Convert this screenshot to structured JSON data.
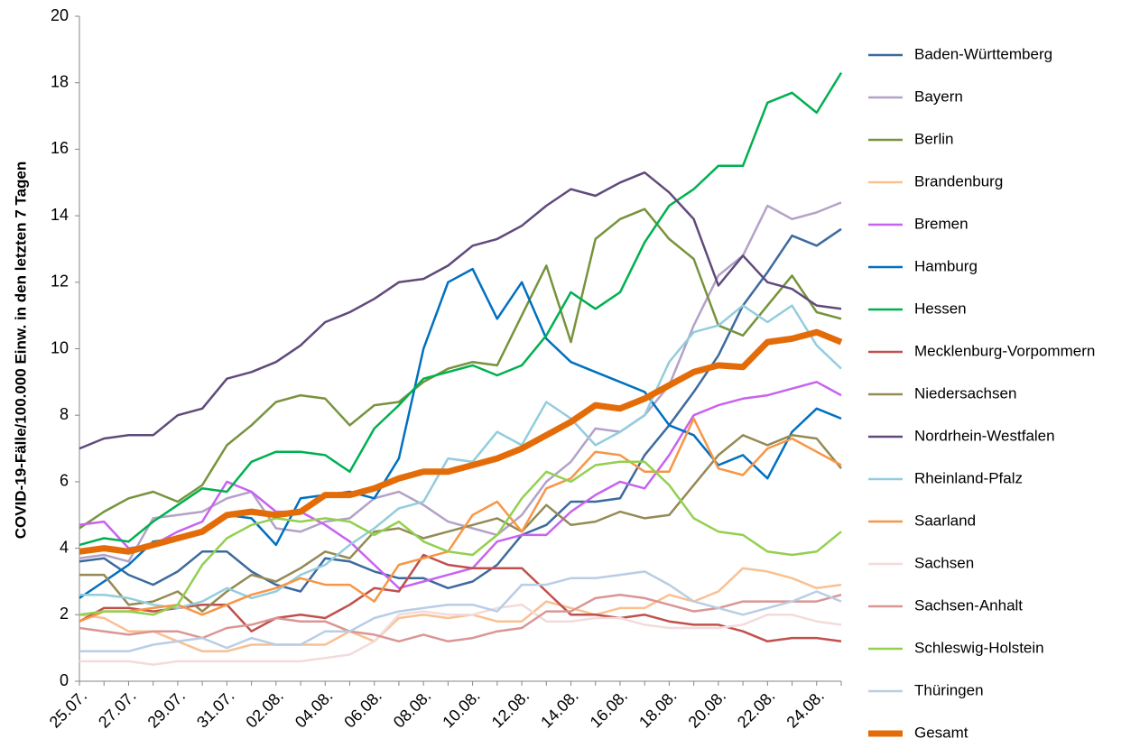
{
  "chart_data": {
    "type": "line",
    "y_label": "COVID-19-Fälle/100.000 Einw. in den letzten 7 Tagen",
    "categories": [
      "25.07.",
      null,
      "27.07.",
      null,
      "29.07.",
      null,
      "31.07.",
      null,
      "02.08.",
      null,
      "04.08.",
      null,
      "06.08.",
      null,
      "08.08.",
      null,
      "10.08.",
      null,
      "12.08.",
      null,
      "14.08.",
      null,
      "16.08.",
      null,
      "18.08.",
      null,
      "20.08.",
      null,
      "22.08.",
      null,
      "24.08.",
      null
    ],
    "ylim": [
      0,
      20
    ],
    "yticks": [
      0,
      2,
      4,
      6,
      8,
      10,
      12,
      14,
      16,
      18,
      20
    ],
    "grid": false,
    "legend": "right",
    "series": [
      {
        "name": "Baden-Württemberg",
        "color": "#3d6a9e",
        "values": [
          3.6,
          3.7,
          3.2,
          2.9,
          3.3,
          3.9,
          3.9,
          3.3,
          2.9,
          2.7,
          3.7,
          3.6,
          3.3,
          3.1,
          3.1,
          2.8,
          3.0,
          3.5,
          4.4,
          4.7,
          5.4,
          5.4,
          5.5,
          6.8,
          7.7,
          8.7,
          9.8,
          11.3,
          12.3,
          13.4,
          13.1,
          13.6
        ]
      },
      {
        "name": "Bayern",
        "color": "#b3a2c7",
        "values": [
          3.7,
          3.8,
          3.6,
          4.9,
          5.0,
          5.1,
          5.5,
          5.7,
          4.6,
          4.5,
          4.8,
          4.9,
          5.5,
          5.7,
          5.3,
          4.8,
          4.6,
          4.4,
          5.0,
          6.0,
          6.6,
          7.6,
          7.5,
          8.0,
          8.9,
          10.7,
          12.2,
          12.8,
          14.3,
          13.9,
          14.1,
          14.4
        ]
      },
      {
        "name": "Berlin",
        "color": "#77933c",
        "values": [
          4.6,
          5.1,
          5.5,
          5.7,
          5.4,
          5.9,
          7.1,
          7.7,
          8.4,
          8.6,
          8.5,
          7.7,
          8.3,
          8.4,
          9.0,
          9.4,
          9.6,
          9.5,
          11.0,
          12.5,
          10.2,
          13.3,
          13.9,
          14.2,
          13.3,
          12.7,
          10.7,
          10.4,
          11.3,
          12.2,
          11.1,
          10.9
        ]
      },
      {
        "name": "Brandenburg",
        "color": "#fac090",
        "values": [
          2.0,
          1.9,
          1.5,
          1.5,
          1.2,
          0.9,
          0.9,
          1.1,
          1.1,
          1.1,
          1.1,
          1.5,
          1.2,
          1.9,
          2.0,
          1.9,
          2.0,
          1.8,
          1.8,
          2.4,
          2.2,
          2.0,
          2.2,
          2.2,
          2.6,
          2.4,
          2.7,
          3.4,
          3.3,
          3.1,
          2.8,
          2.9
        ]
      },
      {
        "name": "Bremen",
        "color": "#c763f0",
        "values": [
          4.7,
          4.8,
          4.0,
          4.1,
          4.5,
          4.8,
          6.0,
          5.7,
          5.1,
          5.1,
          4.7,
          4.2,
          3.5,
          2.8,
          3.0,
          3.2,
          3.4,
          4.2,
          4.4,
          4.4,
          5.1,
          5.6,
          6.0,
          5.8,
          6.8,
          8.0,
          8.3,
          8.5,
          8.6,
          8.8,
          9.0,
          8.6
        ]
      },
      {
        "name": "Hamburg",
        "color": "#0070c0",
        "values": [
          2.5,
          3.0,
          3.5,
          4.2,
          4.3,
          4.5,
          5.0,
          4.9,
          4.1,
          5.5,
          5.6,
          5.7,
          5.5,
          6.7,
          10.0,
          12.0,
          12.4,
          10.9,
          12.0,
          10.3,
          9.6,
          9.3,
          9.0,
          8.7,
          7.7,
          7.4,
          6.5,
          6.8,
          6.1,
          7.5,
          8.2,
          7.9
        ]
      },
      {
        "name": "Hessen",
        "color": "#00b050",
        "values": [
          4.1,
          4.3,
          4.2,
          4.8,
          5.3,
          5.8,
          5.7,
          6.6,
          6.9,
          6.9,
          6.8,
          6.3,
          7.6,
          8.3,
          9.1,
          9.3,
          9.5,
          9.2,
          9.5,
          10.4,
          11.7,
          11.2,
          11.7,
          13.2,
          14.3,
          14.8,
          15.5,
          15.5,
          17.4,
          17.7,
          17.1,
          18.3
        ]
      },
      {
        "name": "Mecklenburg-Vorpommern",
        "color": "#c0504d",
        "values": [
          1.8,
          2.2,
          2.2,
          2.1,
          2.2,
          2.3,
          2.3,
          1.5,
          1.9,
          2.0,
          1.9,
          2.3,
          2.8,
          2.7,
          3.8,
          3.5,
          3.4,
          3.4,
          3.4,
          2.7,
          2.0,
          2.0,
          1.9,
          2.0,
          1.8,
          1.7,
          1.7,
          1.5,
          1.2,
          1.3,
          1.3,
          1.2
        ]
      },
      {
        "name": "Niedersachsen",
        "color": "#948a54",
        "values": [
          3.2,
          3.2,
          2.3,
          2.4,
          2.7,
          2.1,
          2.7,
          3.2,
          3.0,
          3.4,
          3.9,
          3.7,
          4.5,
          4.6,
          4.3,
          4.5,
          4.7,
          4.9,
          4.5,
          5.3,
          4.7,
          4.8,
          5.1,
          4.9,
          5.0,
          5.9,
          6.8,
          7.4,
          7.1,
          7.4,
          7.3,
          6.4
        ]
      },
      {
        "name": "Nordrhein-Westfalen",
        "color": "#604a7b",
        "values": [
          7.0,
          7.3,
          7.4,
          7.4,
          8.0,
          8.2,
          9.1,
          9.3,
          9.6,
          10.1,
          10.8,
          11.1,
          11.5,
          12.0,
          12.1,
          12.5,
          13.1,
          13.3,
          13.7,
          14.3,
          14.8,
          14.6,
          15.0,
          15.3,
          14.7,
          13.9,
          11.9,
          12.8,
          12.0,
          11.8,
          11.3,
          11.2
        ]
      },
      {
        "name": "Rheinland-Pfalz",
        "color": "#93cddd",
        "values": [
          2.6,
          2.6,
          2.5,
          2.3,
          2.2,
          2.4,
          2.8,
          2.5,
          2.7,
          3.2,
          3.5,
          4.1,
          4.6,
          5.2,
          5.4,
          6.7,
          6.6,
          7.5,
          7.1,
          8.4,
          7.9,
          7.1,
          7.5,
          8.0,
          9.6,
          10.5,
          10.7,
          11.3,
          10.8,
          11.3,
          10.1,
          9.4
        ]
      },
      {
        "name": "Saarland",
        "color": "#f79646",
        "values": [
          1.8,
          2.1,
          2.1,
          2.2,
          2.3,
          2.0,
          2.3,
          2.6,
          2.8,
          3.1,
          2.9,
          2.9,
          2.4,
          3.5,
          3.7,
          3.9,
          5.0,
          5.4,
          4.5,
          5.8,
          6.1,
          6.9,
          6.8,
          6.3,
          6.3,
          7.9,
          6.4,
          6.2,
          7.0,
          7.3,
          6.9,
          6.5
        ]
      },
      {
        "name": "Sachsen",
        "color": "#f2dcdb",
        "values": [
          0.6,
          0.6,
          0.6,
          0.5,
          0.6,
          0.6,
          0.6,
          0.6,
          0.6,
          0.6,
          0.7,
          0.8,
          1.2,
          2.0,
          2.1,
          2.0,
          2.0,
          2.2,
          2.3,
          1.8,
          1.8,
          1.9,
          1.9,
          1.7,
          1.6,
          1.6,
          1.6,
          1.7,
          2.0,
          2.0,
          1.8,
          1.7
        ]
      },
      {
        "name": "Sachsen-Anhalt",
        "color": "#d99694",
        "values": [
          1.6,
          1.5,
          1.4,
          1.5,
          1.5,
          1.3,
          1.6,
          1.7,
          1.9,
          1.8,
          1.8,
          1.5,
          1.4,
          1.2,
          1.4,
          1.2,
          1.3,
          1.5,
          1.6,
          2.1,
          2.1,
          2.5,
          2.6,
          2.5,
          2.3,
          2.1,
          2.2,
          2.4,
          2.4,
          2.4,
          2.4,
          2.6
        ]
      },
      {
        "name": "Schleswig-Holstein",
        "color": "#92d050",
        "values": [
          2.0,
          2.1,
          2.1,
          2.0,
          2.3,
          3.5,
          4.3,
          4.7,
          4.9,
          4.8,
          4.9,
          4.8,
          4.4,
          4.8,
          4.2,
          3.9,
          3.8,
          4.4,
          5.5,
          6.3,
          6.0,
          6.5,
          6.6,
          6.6,
          5.9,
          4.9,
          4.5,
          4.4,
          3.9,
          3.8,
          3.9,
          4.5
        ]
      },
      {
        "name": "Thüringen",
        "color": "#b9cde5",
        "values": [
          0.9,
          0.9,
          0.9,
          1.1,
          1.2,
          1.3,
          1.0,
          1.3,
          1.1,
          1.1,
          1.5,
          1.5,
          1.9,
          2.1,
          2.2,
          2.3,
          2.3,
          2.1,
          2.9,
          2.9,
          3.1,
          3.1,
          3.2,
          3.3,
          2.9,
          2.4,
          2.2,
          2.0,
          2.2,
          2.4,
          2.7,
          2.4
        ]
      },
      {
        "name": "Gesamt",
        "color": "#e36c09",
        "bold": true,
        "values": [
          3.9,
          4.0,
          3.9,
          4.1,
          4.3,
          4.5,
          5.0,
          5.1,
          5.0,
          5.1,
          5.6,
          5.6,
          5.8,
          6.1,
          6.3,
          6.3,
          6.5,
          6.7,
          7.0,
          7.4,
          7.8,
          8.3,
          8.2,
          8.5,
          8.9,
          9.3,
          9.5,
          9.45,
          10.2,
          10.3,
          10.5,
          10.2
        ]
      }
    ]
  }
}
